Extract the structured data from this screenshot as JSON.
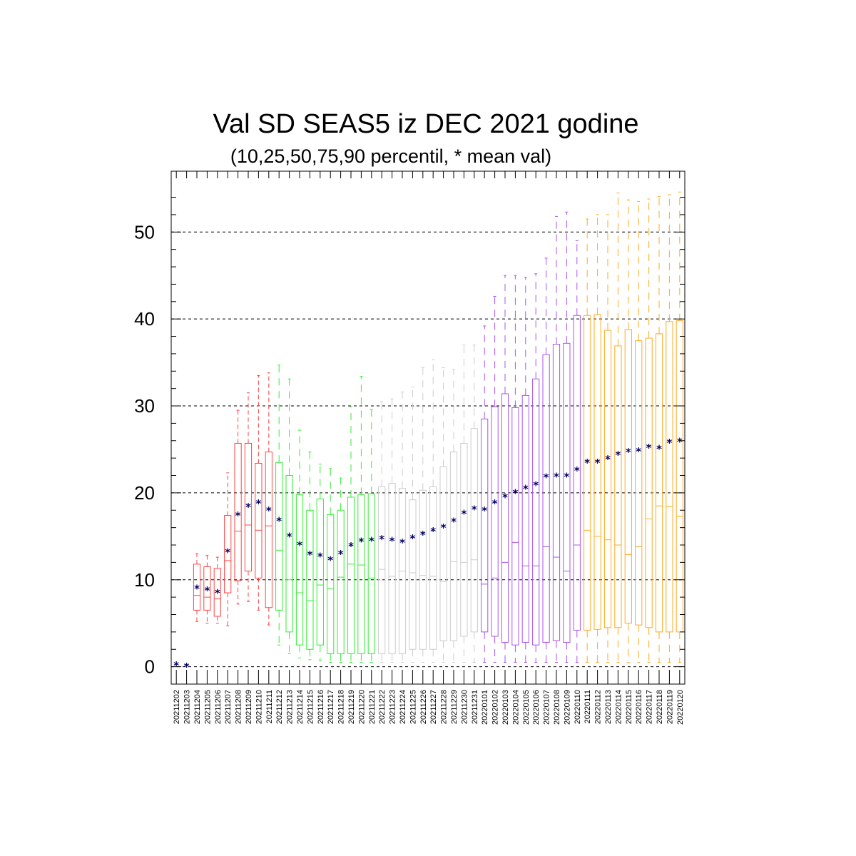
{
  "chart_data": {
    "type": "boxplot",
    "title": "Val SD SEAS5 iz DEC 2021 godine",
    "subtitle": "(10,25,50,75,90 percentil, * mean val)",
    "xlabel": "",
    "ylabel": "",
    "ylim": [
      -2,
      57
    ],
    "yticks": [
      0,
      10,
      20,
      30,
      40,
      50
    ],
    "grid": "horizontal dashed at major y ticks",
    "colors": {
      "dec_2021_weeks_1": "#ff4444",
      "dec_2021_weeks_2": "#33ee33",
      "dec_2021_weeks_3": "#cccccc",
      "jan_2022_weeks_1": "#aa55ee",
      "jan_2022_weeks_2": "#ffaa22",
      "mean_marker": "#000066",
      "grid": "#000000"
    },
    "categories": [
      "20211202",
      "20211203",
      "20211204",
      "20211205",
      "20211206",
      "20211207",
      "20211208",
      "20211209",
      "20211210",
      "20211211",
      "20211212",
      "20211213",
      "20211214",
      "20211215",
      "20211216",
      "20211217",
      "20211218",
      "20211219",
      "20211220",
      "20211221",
      "20211222",
      "20211223",
      "20211224",
      "20211225",
      "20211226",
      "20211227",
      "20211228",
      "20211229",
      "20211230",
      "20211231",
      "20220101",
      "20220102",
      "20220103",
      "20220104",
      "20220105",
      "20220106",
      "20220107",
      "20220108",
      "20220109",
      "20220110",
      "20220111",
      "20220112",
      "20220113",
      "20220114",
      "20220115",
      "20220116",
      "20220117",
      "20220118",
      "20220119",
      "20220120"
    ],
    "p10": [
      0,
      0,
      5.2,
      5,
      5,
      4.7,
      7.2,
      7.5,
      6.5,
      4.8,
      2.5,
      1.5,
      1,
      0.8,
      0.7,
      0.5,
      0.5,
      0.5,
      0.5,
      0.5,
      0.5,
      0.5,
      0.5,
      0.5,
      0.5,
      0.5,
      0.5,
      0.5,
      0.5,
      0.5,
      0.5,
      0.5,
      0.5,
      0.5,
      0.5,
      0.5,
      0.5,
      0.5,
      0.5,
      0.5,
      0.5,
      0.5,
      0.5,
      0.5,
      0.5,
      0.5,
      0.5,
      0.5,
      0.5,
      0.5
    ],
    "p25": [
      0,
      0,
      6.5,
      6.5,
      5.8,
      8.5,
      9.9,
      11,
      10.2,
      6.8,
      6.5,
      4,
      2.5,
      2,
      2.5,
      1.5,
      1.5,
      1.5,
      1.5,
      1.5,
      1.5,
      1.5,
      1.5,
      2,
      2,
      2,
      3,
      3,
      3.5,
      4,
      4,
      3.5,
      2.8,
      2.5,
      2.8,
      2.5,
      2.8,
      3,
      2.8,
      4.2,
      4.2,
      4.3,
      4.5,
      4.5,
      5,
      4.8,
      4.5,
      4,
      4,
      4
    ],
    "p50": [
      0,
      0,
      8.2,
      8,
      7.8,
      12.2,
      15.6,
      16.3,
      15.7,
      16.2,
      13.4,
      10,
      8.5,
      7.6,
      9.4,
      9,
      10.3,
      11.8,
      11.7,
      10.2,
      11.2,
      10.4,
      11,
      10.8,
      10.5,
      10.4,
      9.8,
      12.1,
      12,
      12.3,
      9.5,
      10.2,
      12,
      14.3,
      11.6,
      11.6,
      13.8,
      12.6,
      11,
      14,
      15.7,
      15,
      14.6,
      14,
      12.9,
      13.8,
      17,
      18.5,
      18.4,
      17.3
    ],
    "p75": [
      0,
      0,
      11.8,
      11.5,
      11.3,
      17.4,
      25.7,
      25.7,
      23.4,
      24.7,
      23.5,
      22,
      19.8,
      18,
      19.3,
      17.5,
      18,
      19.5,
      19.8,
      19.9,
      20.7,
      21.1,
      20.5,
      19.2,
      20.3,
      20.7,
      23,
      24.7,
      25.7,
      27.4,
      28.5,
      29.9,
      31.4,
      29.8,
      31.2,
      33.1,
      35.9,
      37.1,
      37.2,
      40.4,
      40.4,
      40.5,
      38.7,
      36.9,
      38.8,
      37.5,
      37.8,
      38.3,
      39.7,
      39.8
    ],
    "p90": [
      0,
      0,
      13,
      12.8,
      12.6,
      22.3,
      29.5,
      31.5,
      33.5,
      33.8,
      34.7,
      33.1,
      27.2,
      24.7,
      23.3,
      22.8,
      21.7,
      29.9,
      33.4,
      29.6,
      30.5,
      30.8,
      31.6,
      32.2,
      34.4,
      35.3,
      34.4,
      34.2,
      37,
      37,
      39.2,
      42.6,
      45,
      45,
      44.8,
      45.2,
      47,
      51.8,
      52.3,
      49,
      51.5,
      52,
      52,
      54.5,
      53.7,
      53.5,
      53.8,
      54.1,
      54.3,
      54.6
    ],
    "mean": [
      0.4,
      0.2,
      9.2,
      9,
      8.7,
      13.4,
      17.6,
      18.6,
      19,
      18.2,
      17,
      15.2,
      14.2,
      13.1,
      12.9,
      12.5,
      13.2,
      14.1,
      14.6,
      14.7,
      14.9,
      14.7,
      14.5,
      15,
      15.4,
      15.8,
      16.2,
      16.9,
      17.8,
      18.3,
      18.2,
      19,
      19.7,
      20.2,
      20.7,
      21.1,
      22,
      22.1,
      22.1,
      22.8,
      23.7,
      23.7,
      24.1,
      24.6,
      24.9,
      25,
      25.4,
      25.3,
      26,
      26.1
    ],
    "color_groups": [
      {
        "name": "dec_2021_weeks_1",
        "start": 0,
        "end": 9
      },
      {
        "name": "dec_2021_weeks_2",
        "start": 10,
        "end": 19
      },
      {
        "name": "dec_2021_weeks_3",
        "start": 20,
        "end": 29
      },
      {
        "name": "jan_2022_weeks_1",
        "start": 30,
        "end": 39
      },
      {
        "name": "jan_2022_weeks_2",
        "start": 40,
        "end": 49
      }
    ],
    "mean_marker_symbol": "*"
  }
}
